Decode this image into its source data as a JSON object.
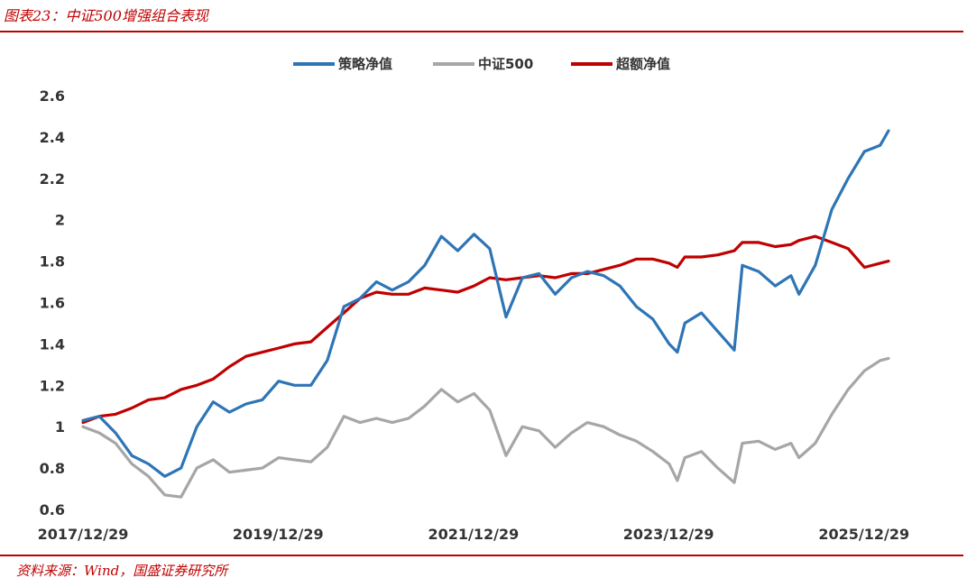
{
  "figure_title": "图表23：中证500增强组合表现",
  "source": "资料来源：Wind，国盛证券研究所",
  "chart_data": {
    "type": "line",
    "title": "",
    "xlabel": "",
    "ylabel": "",
    "ylim": [
      0.6,
      2.6
    ],
    "yticks": [
      0.6,
      0.8,
      1,
      1.2,
      1.4,
      1.6,
      1.8,
      2,
      2.2,
      2.4,
      2.6
    ],
    "xlim": [
      "2017/12/29",
      "2026/03/31"
    ],
    "xticks": [
      "2017/12/29",
      "2019/12/29",
      "2021/12/29",
      "2023/12/29",
      "2025/12/29"
    ],
    "grid": false,
    "legend_position": "top",
    "series": [
      {
        "name": "策略净值",
        "color": "#2e75b6",
        "points": [
          [
            "2017/12/29",
            1.03
          ],
          [
            "2018/02/28",
            1.05
          ],
          [
            "2018/04/30",
            0.97
          ],
          [
            "2018/06/30",
            0.86
          ],
          [
            "2018/08/31",
            0.82
          ],
          [
            "2018/10/31",
            0.76
          ],
          [
            "2018/12/31",
            0.8
          ],
          [
            "2019/02/28",
            1.0
          ],
          [
            "2019/04/30",
            1.12
          ],
          [
            "2019/06/30",
            1.07
          ],
          [
            "2019/08/31",
            1.11
          ],
          [
            "2019/10/31",
            1.13
          ],
          [
            "2019/12/31",
            1.22
          ],
          [
            "2020/02/28",
            1.2
          ],
          [
            "2020/04/30",
            1.2
          ],
          [
            "2020/06/30",
            1.32
          ],
          [
            "2020/08/31",
            1.58
          ],
          [
            "2020/10/31",
            1.62
          ],
          [
            "2020/12/31",
            1.7
          ],
          [
            "2021/02/28",
            1.66
          ],
          [
            "2021/04/30",
            1.7
          ],
          [
            "2021/06/30",
            1.78
          ],
          [
            "2021/08/31",
            1.92
          ],
          [
            "2021/10/31",
            1.85
          ],
          [
            "2021/12/31",
            1.93
          ],
          [
            "2022/02/28",
            1.86
          ],
          [
            "2022/04/30",
            1.53
          ],
          [
            "2022/06/30",
            1.72
          ],
          [
            "2022/08/31",
            1.74
          ],
          [
            "2022/10/31",
            1.64
          ],
          [
            "2022/12/31",
            1.72
          ],
          [
            "2023/02/28",
            1.75
          ],
          [
            "2023/04/30",
            1.73
          ],
          [
            "2023/06/30",
            1.68
          ],
          [
            "2023/08/31",
            1.58
          ],
          [
            "2023/10/31",
            1.52
          ],
          [
            "2023/12/31",
            1.4
          ],
          [
            "2024/01/31",
            1.36
          ],
          [
            "2024/02/28",
            1.5
          ],
          [
            "2024/04/30",
            1.55
          ],
          [
            "2024/06/30",
            1.46
          ],
          [
            "2024/08/31",
            1.37
          ],
          [
            "2024/09/30",
            1.78
          ],
          [
            "2024/11/30",
            1.75
          ],
          [
            "2025/01/31",
            1.68
          ],
          [
            "2025/03/31",
            1.73
          ],
          [
            "2025/04/30",
            1.64
          ],
          [
            "2025/06/30",
            1.78
          ],
          [
            "2025/08/31",
            2.05
          ],
          [
            "2025/10/31",
            2.2
          ],
          [
            "2025/12/31",
            2.33
          ],
          [
            "2026/02/28",
            2.36
          ],
          [
            "2026/03/31",
            2.43
          ]
        ]
      },
      {
        "name": "中证500",
        "color": "#a6a6a6",
        "points": [
          [
            "2017/12/29",
            1.0
          ],
          [
            "2018/02/28",
            0.97
          ],
          [
            "2018/04/30",
            0.92
          ],
          [
            "2018/06/30",
            0.82
          ],
          [
            "2018/08/31",
            0.76
          ],
          [
            "2018/10/31",
            0.67
          ],
          [
            "2018/12/31",
            0.66
          ],
          [
            "2019/02/28",
            0.8
          ],
          [
            "2019/04/30",
            0.84
          ],
          [
            "2019/06/30",
            0.78
          ],
          [
            "2019/08/31",
            0.79
          ],
          [
            "2019/10/31",
            0.8
          ],
          [
            "2019/12/31",
            0.85
          ],
          [
            "2020/02/28",
            0.84
          ],
          [
            "2020/04/30",
            0.83
          ],
          [
            "2020/06/30",
            0.9
          ],
          [
            "2020/08/31",
            1.05
          ],
          [
            "2020/10/31",
            1.02
          ],
          [
            "2020/12/31",
            1.04
          ],
          [
            "2021/02/28",
            1.02
          ],
          [
            "2021/04/30",
            1.04
          ],
          [
            "2021/06/30",
            1.1
          ],
          [
            "2021/08/31",
            1.18
          ],
          [
            "2021/10/31",
            1.12
          ],
          [
            "2021/12/31",
            1.16
          ],
          [
            "2022/02/28",
            1.08
          ],
          [
            "2022/04/30",
            0.86
          ],
          [
            "2022/06/30",
            1.0
          ],
          [
            "2022/08/31",
            0.98
          ],
          [
            "2022/10/31",
            0.9
          ],
          [
            "2022/12/31",
            0.97
          ],
          [
            "2023/02/28",
            1.02
          ],
          [
            "2023/04/30",
            1.0
          ],
          [
            "2023/06/30",
            0.96
          ],
          [
            "2023/08/31",
            0.93
          ],
          [
            "2023/10/31",
            0.88
          ],
          [
            "2023/12/31",
            0.82
          ],
          [
            "2024/01/31",
            0.74
          ],
          [
            "2024/02/28",
            0.85
          ],
          [
            "2024/04/30",
            0.88
          ],
          [
            "2024/06/30",
            0.8
          ],
          [
            "2024/08/31",
            0.73
          ],
          [
            "2024/09/30",
            0.92
          ],
          [
            "2024/11/30",
            0.93
          ],
          [
            "2025/01/31",
            0.89
          ],
          [
            "2025/03/31",
            0.92
          ],
          [
            "2025/04/30",
            0.85
          ],
          [
            "2025/06/30",
            0.92
          ],
          [
            "2025/08/31",
            1.06
          ],
          [
            "2025/10/31",
            1.18
          ],
          [
            "2025/12/31",
            1.27
          ],
          [
            "2026/02/28",
            1.32
          ],
          [
            "2026/03/31",
            1.33
          ]
        ]
      },
      {
        "name": "超额净值",
        "color": "#c00000",
        "points": [
          [
            "2017/12/29",
            1.02
          ],
          [
            "2018/02/28",
            1.05
          ],
          [
            "2018/04/30",
            1.06
          ],
          [
            "2018/06/30",
            1.09
          ],
          [
            "2018/08/31",
            1.13
          ],
          [
            "2018/10/31",
            1.14
          ],
          [
            "2018/12/31",
            1.18
          ],
          [
            "2019/02/28",
            1.2
          ],
          [
            "2019/04/30",
            1.23
          ],
          [
            "2019/06/30",
            1.29
          ],
          [
            "2019/08/31",
            1.34
          ],
          [
            "2019/10/31",
            1.36
          ],
          [
            "2019/12/31",
            1.38
          ],
          [
            "2020/02/28",
            1.4
          ],
          [
            "2020/04/30",
            1.41
          ],
          [
            "2020/06/30",
            1.48
          ],
          [
            "2020/08/31",
            1.55
          ],
          [
            "2020/10/31",
            1.62
          ],
          [
            "2020/12/31",
            1.65
          ],
          [
            "2021/02/28",
            1.64
          ],
          [
            "2021/04/30",
            1.64
          ],
          [
            "2021/06/30",
            1.67
          ],
          [
            "2021/08/31",
            1.66
          ],
          [
            "2021/10/31",
            1.65
          ],
          [
            "2021/12/31",
            1.68
          ],
          [
            "2022/02/28",
            1.72
          ],
          [
            "2022/04/30",
            1.71
          ],
          [
            "2022/06/30",
            1.72
          ],
          [
            "2022/08/31",
            1.73
          ],
          [
            "2022/10/31",
            1.72
          ],
          [
            "2022/12/31",
            1.74
          ],
          [
            "2023/02/28",
            1.74
          ],
          [
            "2023/04/30",
            1.76
          ],
          [
            "2023/06/30",
            1.78
          ],
          [
            "2023/08/31",
            1.81
          ],
          [
            "2023/10/31",
            1.81
          ],
          [
            "2023/12/31",
            1.79
          ],
          [
            "2024/01/31",
            1.77
          ],
          [
            "2024/02/28",
            1.82
          ],
          [
            "2024/04/30",
            1.82
          ],
          [
            "2024/06/30",
            1.83
          ],
          [
            "2024/08/31",
            1.85
          ],
          [
            "2024/09/30",
            1.89
          ],
          [
            "2024/11/30",
            1.89
          ],
          [
            "2025/01/31",
            1.87
          ],
          [
            "2025/03/31",
            1.88
          ],
          [
            "2025/04/30",
            1.9
          ],
          [
            "2025/06/30",
            1.92
          ],
          [
            "2025/08/31",
            1.89
          ],
          [
            "2025/10/31",
            1.86
          ],
          [
            "2025/12/31",
            1.77
          ],
          [
            "2026/02/28",
            1.79
          ],
          [
            "2026/03/31",
            1.8
          ]
        ]
      }
    ]
  }
}
